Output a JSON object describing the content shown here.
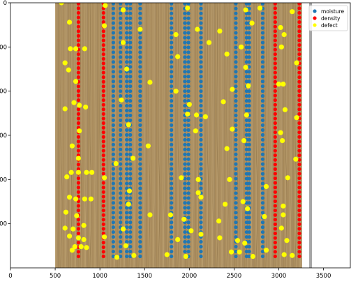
{
  "chart_data": {
    "type": "scatter",
    "xlim": [
      0,
      3800
    ],
    "ylim": [
      0,
      3000
    ],
    "y_inverted": true,
    "grid": false,
    "legend_position": "top-right",
    "background_image": "wood-panel",
    "x_ticks": [
      0,
      500,
      1000,
      1500,
      2000,
      2500,
      3000,
      3500
    ],
    "y_ticks": [
      {
        "value": 0,
        "label": "0"
      },
      {
        "value": 500,
        "label": "00"
      },
      {
        "value": 1000,
        "label": "00"
      },
      {
        "value": 1500,
        "label": "00"
      },
      {
        "value": 2000,
        "label": "00"
      },
      {
        "value": 2500,
        "label": "00"
      }
    ],
    "series": [
      {
        "name": "moisture",
        "color": "#1f77b4",
        "columns_x": [
          1150,
          1230,
          1300,
          1340,
          1450,
          1800,
          1950,
          1990,
          2130,
          2520,
          2640,
          2670,
          2820
        ],
        "y_range": [
          0,
          2900
        ],
        "y_step": 55
      },
      {
        "name": "density",
        "color": "#ff0000",
        "columns_x": [
          760,
          1040,
          2960,
          3230
        ],
        "y_range": [
          0,
          2900
        ],
        "y_step": 52
      },
      {
        "name": "defect",
        "color": "#ffff00",
        "points": [
          [
            570,
            0
          ],
          [
            1060,
            30
          ],
          [
            1260,
            80
          ],
          [
            1980,
            60
          ],
          [
            2630,
            80
          ],
          [
            2790,
            60
          ],
          [
            3150,
            100
          ],
          [
            660,
            220
          ],
          [
            1050,
            260
          ],
          [
            1450,
            300
          ],
          [
            2090,
            300
          ],
          [
            2700,
            230
          ],
          [
            3020,
            280
          ],
          [
            1850,
            360
          ],
          [
            2340,
            320
          ],
          [
            3060,
            360
          ],
          [
            1260,
            450
          ],
          [
            2220,
            450
          ],
          [
            670,
            520
          ],
          [
            730,
            520
          ],
          [
            830,
            520
          ],
          [
            2580,
            500
          ],
          [
            3030,
            500
          ],
          [
            1870,
            610
          ],
          [
            2420,
            580
          ],
          [
            610,
            680
          ],
          [
            3200,
            680
          ],
          [
            650,
            760
          ],
          [
            1300,
            750
          ],
          [
            2630,
            730
          ],
          [
            2660,
            940
          ],
          [
            1560,
            900
          ],
          [
            730,
            890
          ],
          [
            3000,
            920
          ],
          [
            3050,
            920
          ],
          [
            1850,
            1000
          ],
          [
            2480,
            980
          ],
          [
            1240,
            1100
          ],
          [
            2000,
            1150
          ],
          [
            2380,
            1120
          ],
          [
            710,
            1130
          ],
          [
            770,
            1160
          ],
          [
            840,
            1180
          ],
          [
            610,
            1200
          ],
          [
            3070,
            1210
          ],
          [
            1980,
            1260
          ],
          [
            2080,
            1270
          ],
          [
            2180,
            1290
          ],
          [
            2640,
            1270
          ],
          [
            3200,
            1300
          ],
          [
            1320,
            1380
          ],
          [
            2480,
            1430
          ],
          [
            770,
            1450
          ],
          [
            2070,
            1450
          ],
          [
            3020,
            1470
          ],
          [
            3040,
            1560
          ],
          [
            2610,
            1560
          ],
          [
            1540,
            1620
          ],
          [
            690,
            1620
          ],
          [
            1180,
            1820
          ],
          [
            2420,
            1650
          ],
          [
            3190,
            1770
          ],
          [
            1370,
            1760
          ],
          [
            760,
            1760
          ],
          [
            680,
            1920
          ],
          [
            760,
            1920
          ],
          [
            850,
            1920
          ],
          [
            910,
            1920
          ],
          [
            630,
            1970
          ],
          [
            1910,
            1980
          ],
          [
            2100,
            2000
          ],
          [
            2450,
            2000
          ],
          [
            3100,
            1980
          ],
          [
            1050,
            1980
          ],
          [
            2100,
            2150
          ],
          [
            2130,
            2200
          ],
          [
            2600,
            2250
          ],
          [
            3050,
            2300
          ],
          [
            1330,
            2130
          ],
          [
            2860,
            2080
          ],
          [
            660,
            2200
          ],
          [
            730,
            2220
          ],
          [
            830,
            2220
          ],
          [
            900,
            2220
          ],
          [
            1320,
            2280
          ],
          [
            1560,
            2400
          ],
          [
            2400,
            2280
          ],
          [
            2650,
            2330
          ],
          [
            620,
            2370
          ],
          [
            740,
            2410
          ],
          [
            3050,
            2400
          ],
          [
            1790,
            2400
          ],
          [
            2840,
            2420
          ],
          [
            3030,
            2550
          ],
          [
            1940,
            2450
          ],
          [
            2330,
            2470
          ],
          [
            610,
            2550
          ],
          [
            700,
            2560
          ],
          [
            820,
            2520
          ],
          [
            1260,
            2560
          ],
          [
            2020,
            2580
          ],
          [
            2130,
            2620
          ],
          [
            2340,
            2660
          ],
          [
            660,
            2640
          ],
          [
            760,
            2660
          ],
          [
            820,
            2680
          ],
          [
            1050,
            2650
          ],
          [
            1870,
            2680
          ],
          [
            2540,
            2690
          ],
          [
            3090,
            2690
          ],
          [
            2620,
            2720
          ],
          [
            720,
            2760
          ],
          [
            790,
            2760
          ],
          [
            850,
            2770
          ],
          [
            1290,
            2750
          ],
          [
            2560,
            2820
          ],
          [
            1750,
            2850
          ],
          [
            1960,
            2870
          ],
          [
            2470,
            2820
          ],
          [
            2860,
            2800
          ],
          [
            3060,
            2850
          ],
          [
            1190,
            2880
          ],
          [
            3150,
            2860
          ],
          [
            690,
            2800
          ],
          [
            1380,
            2860
          ],
          [
            2710,
            2870
          ]
        ]
      }
    ]
  }
}
